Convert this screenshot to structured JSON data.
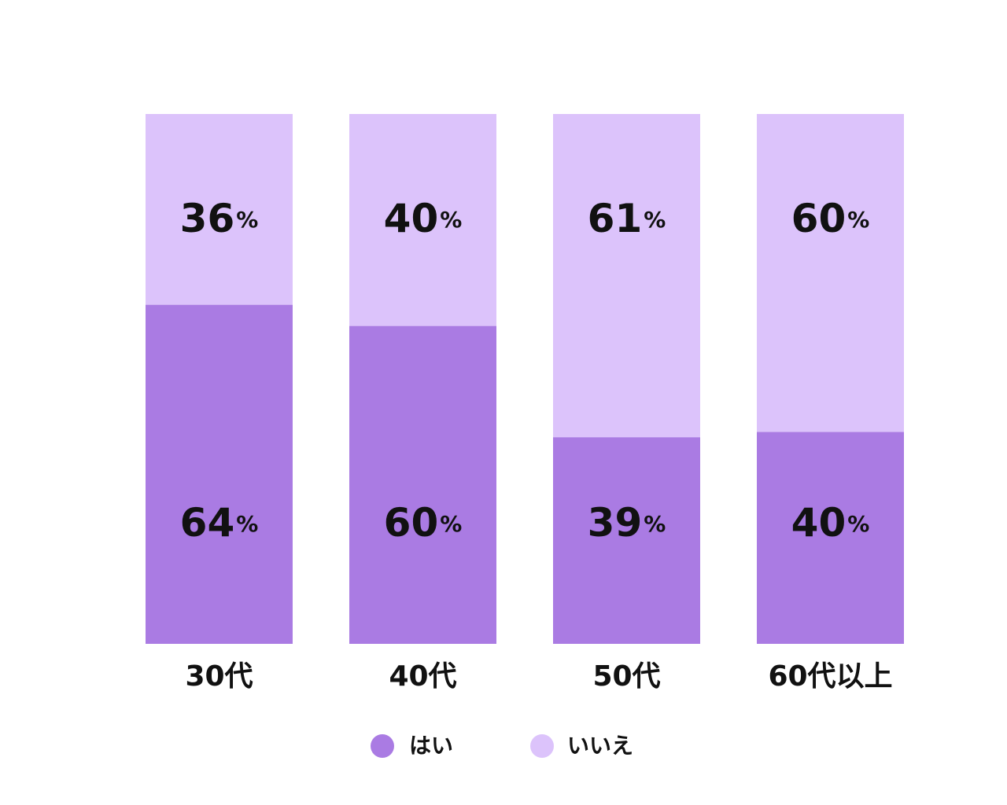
{
  "chart_data": {
    "type": "bar",
    "stacked": true,
    "percent": true,
    "categories": [
      "30代",
      "40代",
      "50代",
      "60代以上"
    ],
    "series": [
      {
        "name": "はい",
        "values": [
          64,
          60,
          39,
          40
        ],
        "color": "#aa7be3"
      },
      {
        "name": "いいえ",
        "values": [
          36,
          40,
          61,
          60
        ],
        "color": "#dcc3fb"
      }
    ],
    "percent_sign": "%",
    "ylim": [
      0,
      100
    ],
    "grid": false,
    "legend_position": "bottom"
  }
}
